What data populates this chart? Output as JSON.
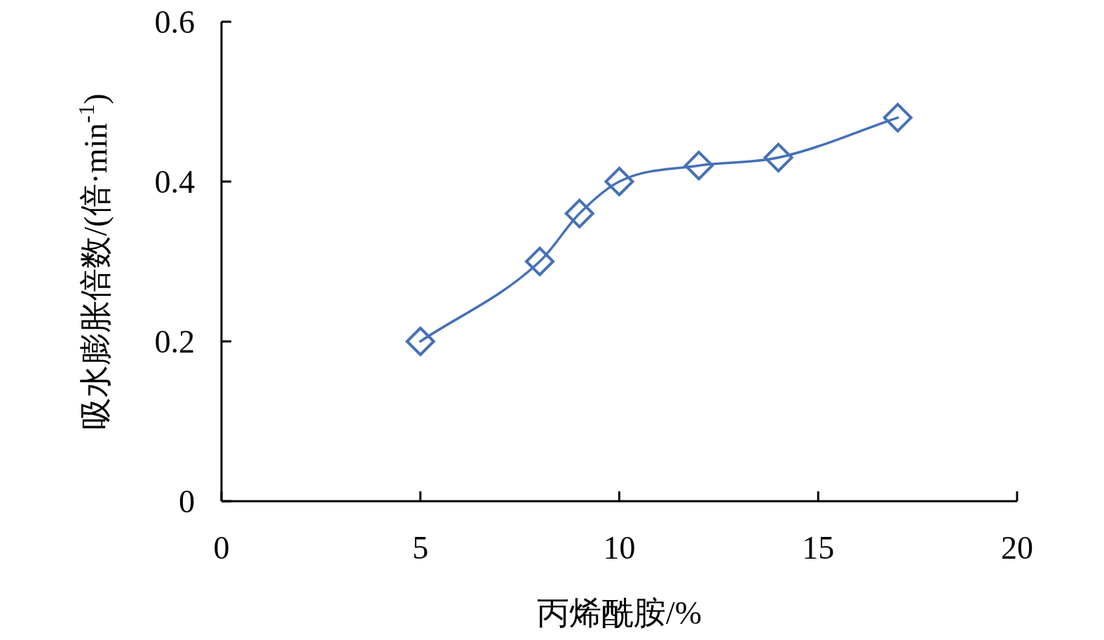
{
  "chart_data": {
    "type": "line",
    "xlabel": "丙烯酰胺/%",
    "ylabel": "吸水膨胀倍数/(倍·min$^{-1}$)",
    "x": [
      5,
      8,
      9,
      10,
      12,
      14,
      17
    ],
    "series": [
      {
        "color": "#4670b8",
        "values": [
          0.2,
          0.3,
          0.36,
          0.4,
          0.42,
          0.43,
          0.48
        ]
      }
    ],
    "xlim": [
      0,
      20
    ],
    "xticks": [
      0,
      5,
      10,
      15,
      20
    ],
    "ylim": [
      0,
      0.6
    ],
    "yticks": [
      0,
      0.2,
      0.4,
      0.6
    ],
    "marker": "diamond",
    "line_style": "solid"
  }
}
